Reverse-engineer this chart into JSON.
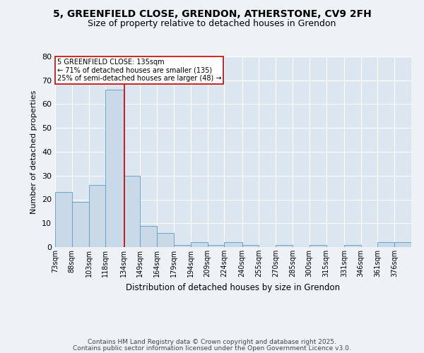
{
  "title1": "5, GREENFIELD CLOSE, GRENDON, ATHERSTONE, CV9 2FH",
  "title2": "Size of property relative to detached houses in Grendon",
  "xlabel": "Distribution of detached houses by size in Grendon",
  "ylabel": "Number of detached properties",
  "bin_labels": [
    "73sqm",
    "88sqm",
    "103sqm",
    "118sqm",
    "134sqm",
    "149sqm",
    "164sqm",
    "179sqm",
    "194sqm",
    "209sqm",
    "224sqm",
    "240sqm",
    "255sqm",
    "270sqm",
    "285sqm",
    "300sqm",
    "315sqm",
    "331sqm",
    "346sqm",
    "361sqm",
    "376sqm"
  ],
  "bin_edges": [
    73,
    88,
    103,
    118,
    134,
    149,
    164,
    179,
    194,
    209,
    224,
    240,
    255,
    270,
    285,
    300,
    315,
    331,
    346,
    361,
    376
  ],
  "values": [
    23,
    19,
    26,
    66,
    30,
    9,
    6,
    1,
    2,
    1,
    2,
    1,
    0,
    1,
    0,
    1,
    0,
    1,
    0,
    2,
    2
  ],
  "bar_color": "#c9d9e8",
  "bar_edge_color": "#5a9bc8",
  "vline_x": 135,
  "vline_color": "#cc0000",
  "annotation_title": "5 GREENFIELD CLOSE: 135sqm",
  "annotation_line1": "← 71% of detached houses are smaller (135)",
  "annotation_line2": "25% of semi-detached houses are larger (48) →",
  "annotation_box_color": "#ffffff",
  "annotation_box_edge": "#cc0000",
  "ylim": [
    0,
    80
  ],
  "yticks": [
    0,
    10,
    20,
    30,
    40,
    50,
    60,
    70,
    80
  ],
  "footer_line1": "Contains HM Land Registry data © Crown copyright and database right 2025.",
  "footer_line2": "Contains public sector information licensed under the Open Government Licence v3.0.",
  "bg_color": "#dce6f0",
  "fig_color": "#eef2f7",
  "title_fontsize": 10,
  "subtitle_fontsize": 9,
  "footer_fontsize": 6.5
}
